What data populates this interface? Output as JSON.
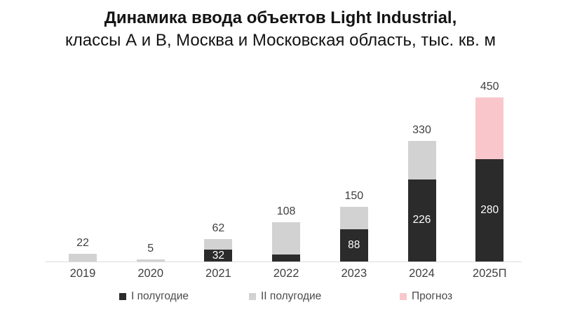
{
  "title": {
    "line1": "Динамика ввода объектов Light Industrial,",
    "line2": "классы А и В, Москва и Московская область, тыс. кв. м"
  },
  "colors": {
    "first_half": "#2b2b2b",
    "second_half": "#d2d2d2",
    "forecast": "#f9c7cb",
    "axis_line": "#dcdcdc",
    "value_label": "#3f3f3f",
    "inner_label": "#ffffff",
    "background": "#ffffff"
  },
  "legend": [
    {
      "label": "I полугодие",
      "color": "#2b2b2b"
    },
    {
      "label": "II полугодие",
      "color": "#d2d2d2"
    },
    {
      "label": "Прогноз",
      "color": "#f9c7cb"
    }
  ],
  "chart_data": {
    "type": "bar",
    "stacked": true,
    "title": "Динамика ввода объектов Light Industrial, классы А и В, Москва и Московская область, тыс. кв. м",
    "categories": [
      "2019",
      "2020",
      "2021",
      "2022",
      "2023",
      "2024",
      "2025П"
    ],
    "series": [
      {
        "name": "I полугодие",
        "color": "#2b2b2b",
        "values": [
          0,
          0,
          32,
          20,
          88,
          226,
          280
        ]
      },
      {
        "name": "II полугодие",
        "color": "#d2d2d2",
        "values": [
          22,
          5,
          30,
          88,
          62,
          104,
          0
        ]
      },
      {
        "name": "Прогноз",
        "color": "#f9c7cb",
        "values": [
          0,
          0,
          0,
          0,
          0,
          0,
          170
        ]
      }
    ],
    "totals": [
      22,
      5,
      62,
      108,
      150,
      330,
      450
    ],
    "total_labels": [
      "22",
      "5",
      "62",
      "108",
      "150",
      "330",
      "450"
    ],
    "inner_labels": [
      "",
      "",
      "32",
      "",
      "88",
      "226",
      "280"
    ],
    "ylim": [
      0,
      450
    ],
    "grid": false,
    "legend_position": "bottom"
  }
}
